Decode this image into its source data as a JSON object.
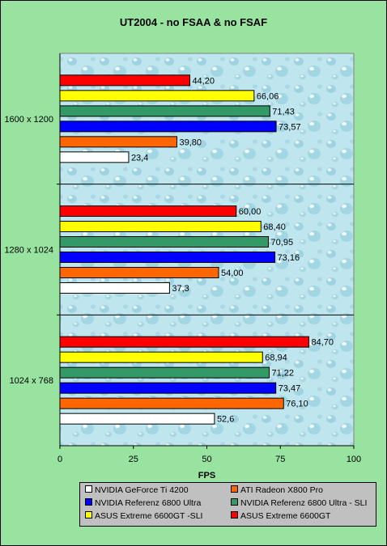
{
  "chart_data": {
    "type": "bar",
    "orientation": "horizontal",
    "title": "UT2004 - no FSAA & no FSAF",
    "xlabel": "FPS",
    "xlim": [
      0,
      100
    ],
    "xticks": [
      "0",
      "25",
      "50",
      "75",
      "100"
    ],
    "categories": [
      "1600 x 1200",
      "1280 x 1024",
      "1024 x 768"
    ],
    "series": [
      {
        "name": "NVIDIA GeForce Ti 4200",
        "color": "#ffffff",
        "values": [
          23.4,
          37.3,
          52.6
        ],
        "labels": [
          "23,4",
          "37,3",
          "52,6"
        ]
      },
      {
        "name": "ATI Radeon X800 Pro",
        "color": "#ff6600",
        "values": [
          39.8,
          54.0,
          76.1
        ],
        "labels": [
          "39,80",
          "54,00",
          "76,10"
        ]
      },
      {
        "name": "NVIDIA  Referenz 6800 Ultra",
        "color": "#0000ff",
        "values": [
          73.57,
          73.16,
          73.47
        ],
        "labels": [
          "73,57",
          "73,16",
          "73,47"
        ]
      },
      {
        "name": "NVIDIA  Referenz 6800 Ultra - SLI",
        "color": "#339966",
        "values": [
          71.43,
          70.95,
          71.22
        ],
        "labels": [
          "71,43",
          "70,95",
          "71,22"
        ]
      },
      {
        "name": "ASUS Extreme 6600GT -SLI",
        "color": "#ffff00",
        "values": [
          66.06,
          68.4,
          68.94
        ],
        "labels": [
          "66,06",
          "68,40",
          "68,94"
        ]
      },
      {
        "name": "ASUS Extreme 6600GT",
        "color": "#ff0000",
        "values": [
          44.2,
          60.0,
          84.7
        ],
        "labels": [
          "44,20",
          "60,00",
          "84,70"
        ]
      }
    ],
    "legend_position": "bottom",
    "grid": false,
    "plot_background": "#bfe4ee"
  }
}
